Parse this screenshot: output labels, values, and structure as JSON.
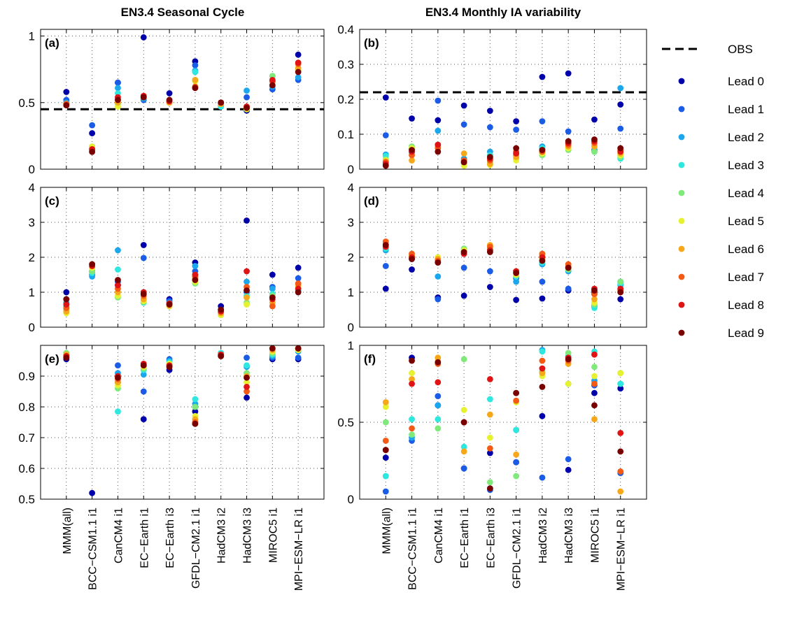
{
  "colors": {
    "obs": "#000000",
    "leads": [
      "#0000aa",
      "#1a5ce6",
      "#1aa7ee",
      "#2ee8e0",
      "#7fea7a",
      "#e6f230",
      "#f7a81a",
      "#f55a14",
      "#e01414",
      "#7a0000"
    ]
  },
  "legend": {
    "obs": "OBS",
    "leads": [
      "Lead 0",
      "Lead 1",
      "Lead 2",
      "Lead 3",
      "Lead 4",
      "Lead 5",
      "Lead 6",
      "Lead 7",
      "Lead 8",
      "Lead 9"
    ]
  },
  "categories": [
    "MMM(all)",
    "BCC−CSM1.1 i1",
    "CanCM4 i1",
    "EC−Earth i1",
    "EC−Earth i3",
    "GFDL−CM2.1 i1",
    "HadCM3 i2",
    "HadCM3 i3",
    "MIROC5 i1",
    "MPI−ESM−LR i1"
  ],
  "column_titles": [
    "EN3.4 Seasonal Cycle",
    "EN3.4 Monthly IA variability"
  ],
  "chart_data": [
    {
      "type": "scatter",
      "panel": "(a)",
      "grid": true,
      "ylim": [
        0,
        1.05
      ],
      "yticks": [
        0,
        0.5,
        1
      ],
      "ytick_labels": [
        "0",
        "0.5",
        "1"
      ],
      "obs": 0.45,
      "values": [
        [
          0.58,
          0.52,
          0.5,
          0.49,
          0.49,
          0.49,
          0.49,
          0.49,
          0.48,
          0.48
        ],
        [
          0.27,
          0.33,
          0.17,
          0.16,
          0.15,
          0.17,
          0.15,
          0.14,
          0.15,
          0.13
        ],
        [
          0.65,
          0.65,
          0.61,
          0.57,
          0.49,
          0.47,
          0.5,
          0.52,
          0.54,
          0.52
        ],
        [
          0.99,
          0.52,
          0.53,
          0.54,
          0.54,
          0.54,
          0.55,
          0.55,
          0.55,
          0.54
        ],
        [
          0.57,
          0.51,
          0.5,
          0.5,
          0.5,
          0.5,
          0.5,
          0.51,
          0.51,
          0.52
        ],
        [
          0.81,
          0.78,
          0.74,
          0.73,
          0.67,
          0.66,
          0.67,
          0.62,
          0.61,
          0.61
        ],
        [
          0.48,
          0.49,
          0.47,
          0.47,
          0.49,
          0.49,
          0.49,
          0.5,
          0.5,
          0.5
        ],
        [
          0.44,
          0.54,
          0.59,
          0.45,
          0.45,
          0.45,
          0.46,
          0.47,
          0.47,
          0.46
        ],
        [
          0.66,
          0.6,
          0.62,
          0.7,
          0.7,
          0.65,
          0.66,
          0.66,
          0.67,
          0.63
        ],
        [
          0.86,
          0.67,
          0.69,
          0.75,
          0.75,
          0.75,
          0.76,
          0.79,
          0.8,
          0.73
        ]
      ]
    },
    {
      "type": "scatter",
      "panel": "(b)",
      "grid": true,
      "ylim": [
        0,
        0.4
      ],
      "yticks": [
        0,
        0.1,
        0.2,
        0.3,
        0.4
      ],
      "ytick_labels": [
        "0",
        "0.1",
        "0.2",
        "0.3",
        "0.4"
      ],
      "obs": 0.22,
      "values": [
        [
          0.205,
          0.097,
          0.042,
          0.038,
          0.028,
          0.025,
          0.022,
          0.02,
          0.015,
          0.01
        ],
        [
          0.145,
          0.057,
          0.048,
          0.058,
          0.065,
          0.06,
          0.025,
          0.04,
          0.05,
          0.055
        ],
        [
          0.14,
          0.196,
          0.11,
          0.07,
          0.065,
          0.06,
          0.065,
          0.06,
          0.07,
          0.05
        ],
        [
          0.182,
          0.128,
          0.03,
          0.018,
          0.015,
          0.01,
          0.045,
          0.025,
          0.02,
          0.02
        ],
        [
          0.167,
          0.12,
          0.05,
          0.04,
          0.02,
          0.012,
          0.015,
          0.025,
          0.03,
          0.035
        ],
        [
          0.137,
          0.113,
          0.04,
          0.04,
          0.03,
          0.025,
          0.035,
          0.05,
          0.045,
          0.06
        ],
        [
          0.264,
          0.137,
          0.065,
          0.06,
          0.04,
          0.045,
          0.05,
          0.05,
          0.055,
          0.055
        ],
        [
          0.274,
          0.108,
          0.075,
          0.06,
          0.055,
          0.06,
          0.065,
          0.07,
          0.075,
          0.08
        ],
        [
          0.142,
          0.055,
          0.055,
          0.05,
          0.05,
          0.07,
          0.065,
          0.075,
          0.08,
          0.085
        ],
        [
          0.185,
          0.116,
          0.232,
          0.03,
          0.035,
          0.04,
          0.045,
          0.055,
          0.05,
          0.06
        ]
      ]
    },
    {
      "type": "scatter",
      "panel": "(c)",
      "grid": true,
      "ylim": [
        0,
        4
      ],
      "yticks": [
        0,
        1,
        2,
        3,
        4
      ],
      "ytick_labels": [
        "0",
        "1",
        "2",
        "3",
        "4"
      ],
      "obs": null,
      "values": [
        [
          1.0,
          0.8,
          0.7,
          0.6,
          0.5,
          0.4,
          0.45,
          0.55,
          0.65,
          0.8
        ],
        [
          1.6,
          1.5,
          1.45,
          1.55,
          1.6,
          1.7,
          1.75,
          1.8,
          1.75,
          1.8
        ],
        [
          1.2,
          1.3,
          2.2,
          1.65,
          0.85,
          0.9,
          1.0,
          1.1,
          1.2,
          1.35
        ],
        [
          2.35,
          1.98,
          1.0,
          0.7,
          0.72,
          0.75,
          0.8,
          0.9,
          1.0,
          0.95
        ],
        [
          0.8,
          0.75,
          0.7,
          0.65,
          0.6,
          0.6,
          0.62,
          0.65,
          0.68,
          0.65
        ],
        [
          1.85,
          1.6,
          1.75,
          1.5,
          1.25,
          1.3,
          1.4,
          1.45,
          1.5,
          1.35
        ],
        [
          0.6,
          0.5,
          0.4,
          0.35,
          0.4,
          0.35,
          0.4,
          0.45,
          0.45,
          0.5
        ],
        [
          3.05,
          1.0,
          1.3,
          0.9,
          0.7,
          0.65,
          0.85,
          1.15,
          1.6,
          1.05
        ],
        [
          1.5,
          1.15,
          1.1,
          0.95,
          0.9,
          0.85,
          0.7,
          0.6,
          0.8,
          0.85
        ],
        [
          1.7,
          1.4,
          1.05,
          1.0,
          1.1,
          1.15,
          1.2,
          1.25,
          1.1,
          1.0
        ]
      ]
    },
    {
      "type": "scatter",
      "panel": "(d)",
      "grid": true,
      "ylim": [
        0,
        4
      ],
      "yticks": [
        0,
        1,
        2,
        3,
        4
      ],
      "ytick_labels": [
        "0",
        "1",
        "2",
        "3",
        "4"
      ],
      "obs": null,
      "values": [
        [
          1.1,
          1.75,
          2.2,
          2.25,
          2.3,
          2.35,
          2.4,
          2.45,
          2.3,
          2.35
        ],
        [
          1.65,
          1.95,
          2.0,
          2.05,
          2.0,
          2.0,
          2.05,
          2.1,
          2.0,
          1.95
        ],
        [
          0.85,
          0.8,
          1.45,
          1.9,
          1.95,
          2.0,
          1.95,
          1.9,
          1.85,
          1.85
        ],
        [
          0.9,
          1.7,
          2.1,
          2.2,
          2.25,
          2.2,
          2.15,
          2.1,
          2.1,
          2.15
        ],
        [
          1.15,
          1.6,
          2.2,
          2.2,
          2.25,
          2.3,
          2.35,
          2.3,
          2.2,
          2.15
        ],
        [
          0.78,
          1.4,
          1.3,
          1.45,
          1.5,
          1.5,
          1.55,
          1.6,
          1.6,
          1.55
        ],
        [
          0.82,
          1.3,
          1.8,
          1.85,
          1.9,
          1.95,
          2.05,
          2.1,
          2.0,
          1.9
        ],
        [
          1.05,
          1.1,
          1.6,
          1.65,
          1.65,
          1.7,
          1.75,
          1.8,
          1.7,
          1.7
        ],
        [
          0.95,
          1.0,
          0.6,
          0.55,
          0.65,
          0.7,
          0.8,
          0.95,
          1.1,
          1.05
        ],
        [
          0.8,
          1.3,
          1.2,
          1.25,
          1.3,
          1.05,
          1.0,
          1.05,
          1.1,
          1.0
        ]
      ]
    },
    {
      "type": "scatter",
      "panel": "(e)",
      "grid": true,
      "ylim": [
        0.5,
        1.0
      ],
      "yticks": [
        0.5,
        0.6,
        0.7,
        0.8,
        0.9
      ],
      "ytick_labels": [
        "0.5",
        "0.6",
        "0.7",
        "0.8",
        "0.9"
      ],
      "obs": null,
      "values": [
        [
          0.955,
          0.96,
          0.97,
          0.975,
          0.975,
          0.97,
          0.97,
          0.965,
          0.965,
          0.96
        ],
        [
          0.52,
          null,
          null,
          null,
          null,
          null,
          null,
          null,
          null,
          null
        ],
        [
          0.88,
          0.935,
          0.91,
          0.785,
          0.86,
          0.87,
          0.88,
          0.89,
          0.9,
          0.895
        ],
        [
          0.76,
          0.85,
          0.905,
          0.92,
          0.925,
          0.93,
          0.935,
          0.94,
          0.94,
          0.935
        ],
        [
          0.92,
          0.955,
          0.95,
          0.945,
          0.94,
          0.94,
          0.935,
          0.93,
          0.935,
          0.93
        ],
        [
          0.785,
          0.8,
          0.81,
          0.825,
          0.8,
          0.77,
          0.76,
          0.75,
          0.745,
          0.745
        ],
        [
          0.97,
          0.975,
          0.975,
          0.975,
          0.97,
          0.97,
          0.965,
          0.965,
          0.97,
          0.965
        ],
        [
          0.83,
          0.96,
          0.93,
          0.935,
          0.91,
          0.88,
          0.9,
          0.85,
          0.865,
          0.895
        ],
        [
          0.955,
          0.96,
          0.965,
          0.97,
          0.975,
          0.98,
          0.985,
          0.99,
          0.99,
          0.99
        ],
        [
          0.955,
          0.96,
          0.98,
          0.985,
          0.985,
          0.985,
          0.99,
          0.99,
          0.99,
          0.99
        ]
      ]
    },
    {
      "type": "scatter",
      "panel": "(f)",
      "grid": true,
      "ylim": [
        0,
        1.0
      ],
      "yticks": [
        0,
        0.5,
        1
      ],
      "ytick_labels": [
        "0",
        "0.5",
        "1"
      ],
      "obs": null,
      "values": [
        [
          0.27,
          0.05,
          0.15,
          0.15,
          0.5,
          0.6,
          0.63,
          0.38,
          0.32,
          0.32
        ],
        [
          0.92,
          0.38,
          0.4,
          0.52,
          0.42,
          0.82,
          0.78,
          0.46,
          0.75,
          0.9
        ],
        [
          0.61,
          0.67,
          0.61,
          0.52,
          0.46,
          0.9,
          0.92,
          0.88,
          0.76,
          0.89
        ],
        [
          0.2,
          0.2,
          0.5,
          0.34,
          0.91,
          0.58,
          0.31,
          0.5,
          0.5,
          0.5
        ],
        [
          0.3,
          0.06,
          0.07,
          0.65,
          0.11,
          0.4,
          0.55,
          0.33,
          0.78,
          0.07
        ],
        [
          0.24,
          0.24,
          0.45,
          0.45,
          0.15,
          0.63,
          0.29,
          0.64,
          0.69,
          0.69
        ],
        [
          0.54,
          0.14,
          0.97,
          0.96,
          0.83,
          0.8,
          0.82,
          0.9,
          0.85,
          0.73
        ],
        [
          0.19,
          0.26,
          0.75,
          0.93,
          0.95,
          0.75,
          0.88,
          0.9,
          0.92,
          0.91
        ],
        [
          0.69,
          0.74,
          0.77,
          0.96,
          0.86,
          0.8,
          0.52,
          0.75,
          0.94,
          0.61
        ],
        [
          0.72,
          0.17,
          0.75,
          0.75,
          0.82,
          0.82,
          0.05,
          0.18,
          0.43,
          0.31
        ]
      ]
    }
  ]
}
